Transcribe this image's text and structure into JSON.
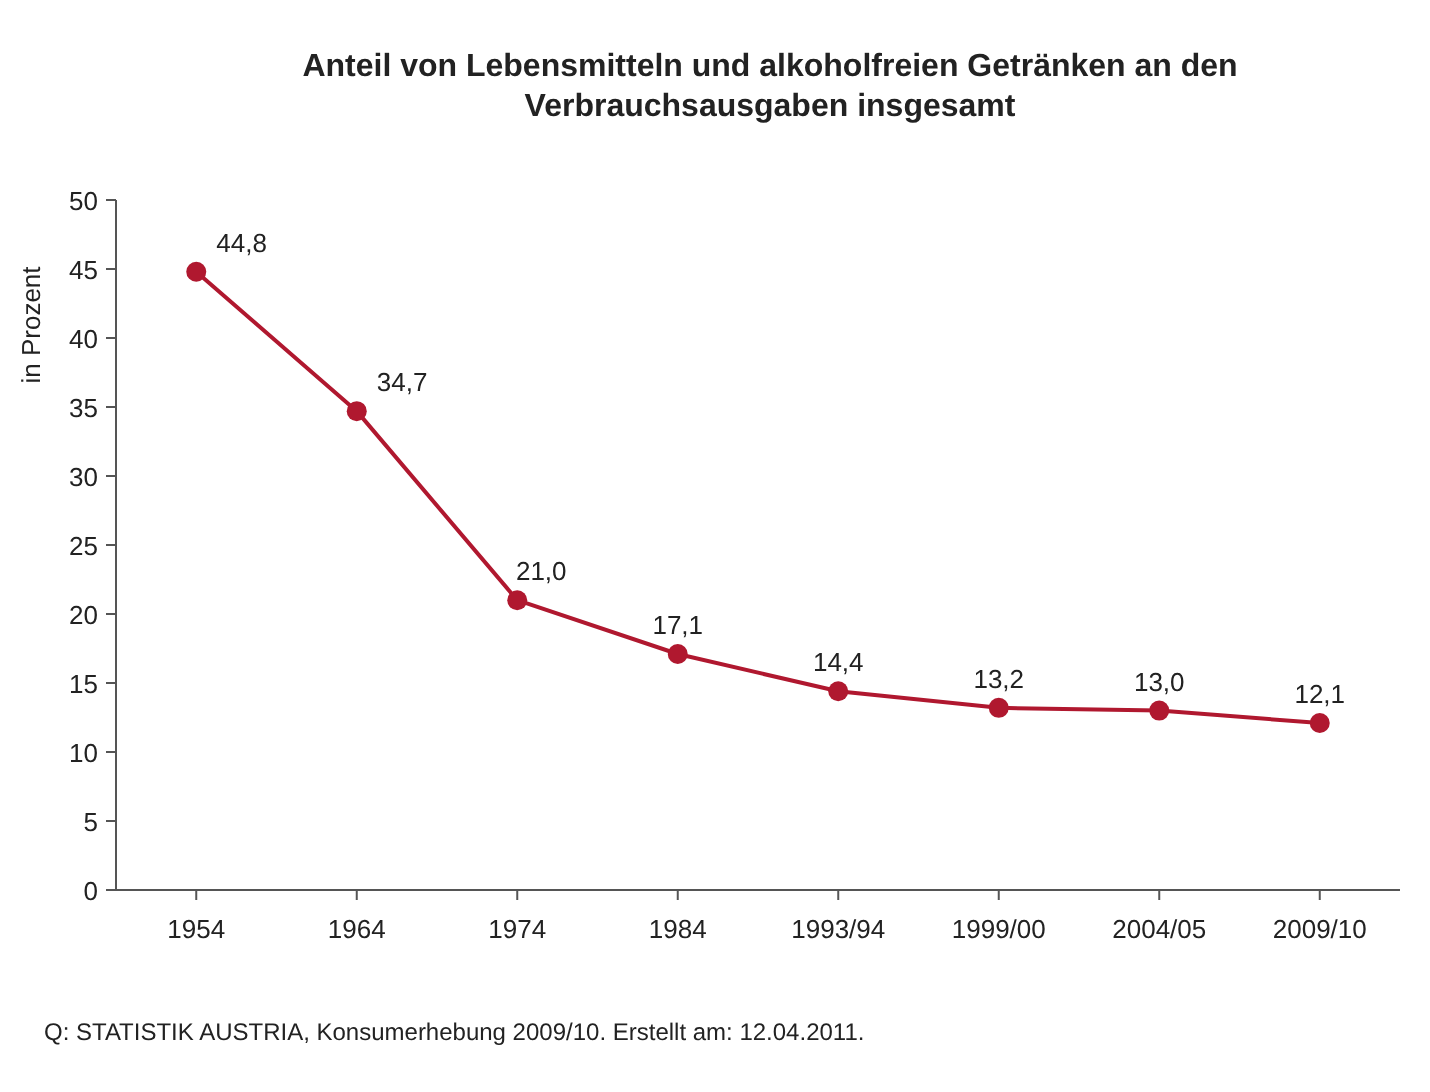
{
  "chart_data": {
    "type": "line",
    "title": "Anteil von Lebensmitteln und alkoholfreien Getränken an den Verbrauchsausgaben insgesamt",
    "ylabel": "in Prozent",
    "categories": [
      "1954",
      "1964",
      "1974",
      "1984",
      "1993/94",
      "1999/00",
      "2004/05",
      "2009/10"
    ],
    "series": [
      {
        "color": "#b0182f",
        "values": [
          44.8,
          34.7,
          21.0,
          17.1,
          14.4,
          13.2,
          13.0,
          12.1
        ]
      }
    ],
    "value_labels": [
      "44,8",
      "34,7",
      "21,0",
      "17,1",
      "14,4",
      "13,2",
      "13,0",
      "12,1"
    ],
    "ylim": [
      0,
      50
    ],
    "yticks": [
      0,
      5,
      10,
      15,
      20,
      25,
      30,
      35,
      40,
      45,
      50
    ],
    "marker": "circle",
    "line_style": "solid",
    "grid": false,
    "annotations": [
      "Q: STATISTIK AUSTRIA, Konsumerhebung 2009/10. Erstellt am: 12.04.2011."
    ]
  }
}
